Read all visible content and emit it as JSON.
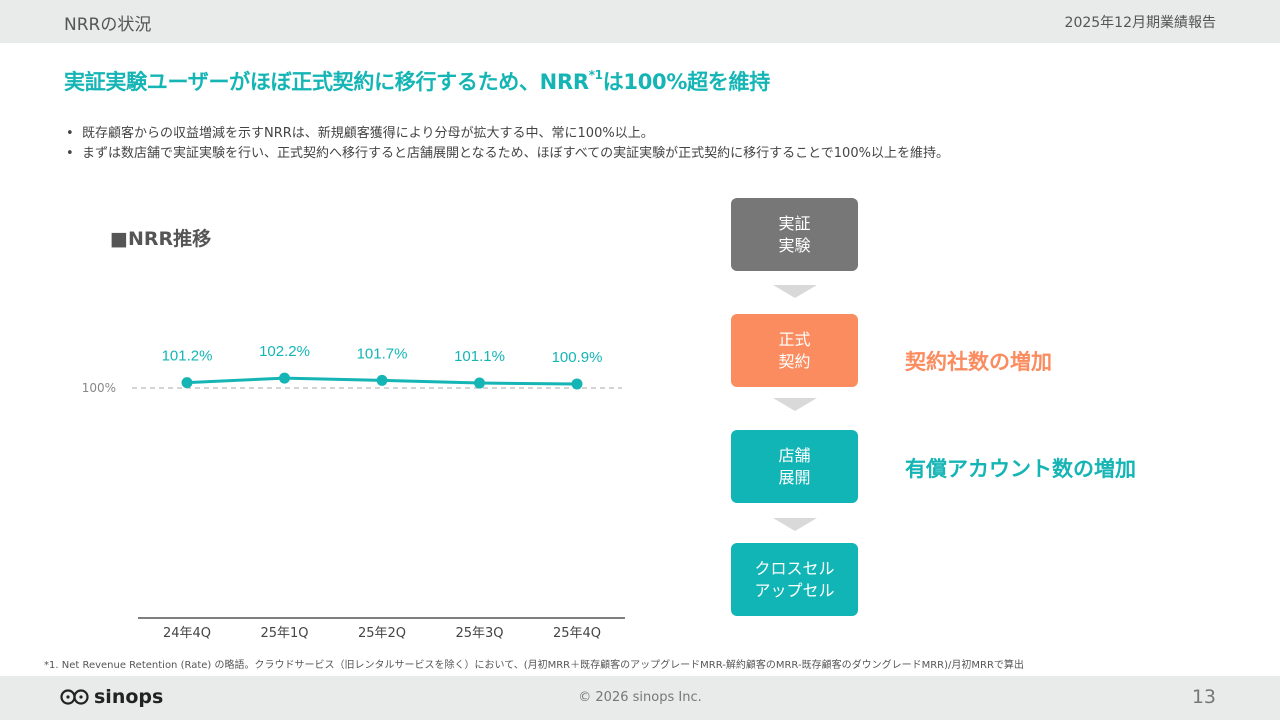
{
  "header": {
    "section_title": "NRRの状況",
    "report_name": "2025年12月期業績報告"
  },
  "headline": {
    "before": "実証実験ユーザーがほぼ正式契約に移行するため、NRR",
    "sup": "*1",
    "after": "は100%超を維持"
  },
  "bullets": [
    "既存顧客からの収益増減を示すNRRは、新規顧客獲得により分母が拡大する中、常に100%以上。",
    "まずは数店舗で実証実験を行い、正式契約へ移行すると店舗展開となるため、ほぼすべての実証実験が正式契約に移行することで100%以上を維持。"
  ],
  "chart_title": "■NRR推移",
  "chart_data": {
    "type": "line",
    "title": "■NRR推移",
    "categories": [
      "24年4Q",
      "25年1Q",
      "25年2Q",
      "25年3Q",
      "25年4Q"
    ],
    "values": [
      101.2,
      102.2,
      101.7,
      101.1,
      100.9
    ],
    "data_labels": [
      "101.2%",
      "102.2%",
      "101.7%",
      "101.1%",
      "100.9%"
    ],
    "reference_line": {
      "value": 100,
      "label": "100%"
    },
    "colors": {
      "line": "#15b5b5",
      "reference": "#aaaaaa",
      "label": "#15b5b5"
    }
  },
  "flow": {
    "boxes": [
      {
        "lines": [
          "実証",
          "実験"
        ]
      },
      {
        "lines": [
          "正式",
          "契約"
        ]
      },
      {
        "lines": [
          "店舗",
          "展開"
        ]
      },
      {
        "lines": [
          "クロスセル",
          "アップセル"
        ]
      }
    ],
    "effects": [
      "契約社数の増加",
      "有償アカウント数の増加"
    ]
  },
  "footnote": "*1. Net Revenue Retention (Rate) の略語。クラウドサービス（旧レンタルサービスを除く）において、(月初MRR＋既存顧客のアップグレードMRR-解約顧客のMRR-既存顧客のダウングレードMRR)/月初MRRで算出",
  "footer": {
    "logo_text": "sinops",
    "copyright": "© 2026 sinops Inc.",
    "page_number": "13"
  },
  "colors": {
    "teal": "#15b5b5",
    "orange": "#fb8c5f",
    "gray_box": "#777777",
    "bar_bg": "#e9ebea"
  }
}
